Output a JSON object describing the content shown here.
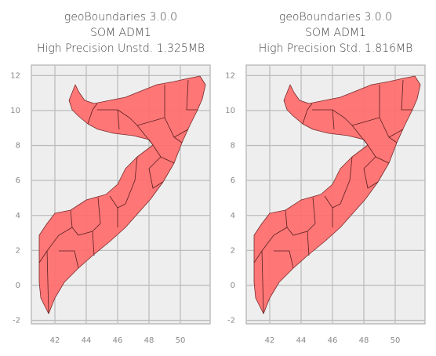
{
  "chart_data": [
    {
      "type": "map",
      "title": [
        "geoBoundaries 3.0.0",
        "SOM ADM1",
        "High Precision Unstd. 1.325MB"
      ],
      "xlim": [
        40.5,
        51.9
      ],
      "ylim": [
        -2.2,
        12.6
      ],
      "xticks": [
        42,
        44,
        46,
        48,
        50
      ],
      "yticks": [
        -2,
        0,
        2,
        4,
        6,
        8,
        10,
        12
      ],
      "grid": true,
      "color": "#ff6b6b"
    },
    {
      "type": "map",
      "title": [
        "geoBoundaries 3.0.0",
        "SOM ADM1",
        "High Precision Std. 1.816MB"
      ],
      "xlim": [
        40.5,
        51.9
      ],
      "ylim": [
        -2.2,
        12.6
      ],
      "xticks": [
        42,
        44,
        46,
        48,
        50
      ],
      "yticks": [
        -2,
        0,
        2,
        4,
        6,
        8,
        10,
        12
      ],
      "grid": true,
      "color": "#ff6b6b"
    }
  ]
}
